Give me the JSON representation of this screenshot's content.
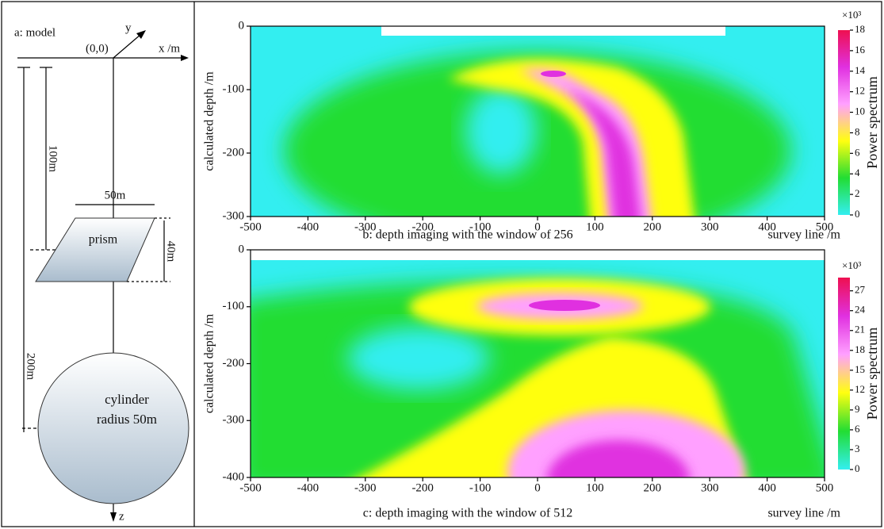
{
  "model": {
    "label": "a: model",
    "origin": "(0,0)",
    "x_axis": "x /m",
    "y_axis": "y",
    "z_axis": "z",
    "depth_to_prism": "100m",
    "prism_width": "50m",
    "prism": "prism",
    "prism_height": "40m",
    "depth_to_cylinder": "200m",
    "cylinder": [
      "cylinder",
      "radius 50m"
    ]
  },
  "chart_data": [
    {
      "type": "contour",
      "caption": "b: depth imaging with the window of 256",
      "xlabel": "survey line /m",
      "ylabel": "calculated depth /m",
      "xlim": [
        -500,
        500
      ],
      "xticks": [
        -500,
        -400,
        -300,
        -200,
        -100,
        0,
        100,
        200,
        300,
        400,
        500
      ],
      "ylim": [
        -300,
        0
      ],
      "yticks": [
        0,
        -100,
        -200,
        -300
      ],
      "colorbar_label": "Power spectrum",
      "colorbar_unit": "×10³",
      "clim": [
        0,
        18
      ],
      "cticks": [
        0,
        2,
        4,
        6,
        8,
        10,
        12,
        14,
        16,
        18
      ],
      "colormap": [
        "#33eef0",
        "#22dd33",
        "#ffff10",
        "#ffa0ff",
        "#e030e0",
        "#ee1050"
      ]
    },
    {
      "type": "contour",
      "caption": "c: depth imaging with the window of 512",
      "xlabel": "survey line /m",
      "ylabel": "calculated depth /m",
      "xlim": [
        -500,
        500
      ],
      "xticks": [
        -500,
        -400,
        -300,
        -200,
        -100,
        0,
        100,
        200,
        300,
        400,
        500
      ],
      "ylim": [
        -400,
        0
      ],
      "yticks": [
        0,
        -100,
        -200,
        -300,
        -400
      ],
      "colorbar_label": "Power spectrum",
      "colorbar_unit": "×10³",
      "clim": [
        0,
        29
      ],
      "cticks": [
        0,
        3,
        6,
        9,
        12,
        15,
        18,
        21,
        24,
        27
      ],
      "colormap": [
        "#33eef0",
        "#22dd33",
        "#ffff10",
        "#ffa0ff",
        "#e030e0",
        "#ee1050"
      ]
    }
  ]
}
